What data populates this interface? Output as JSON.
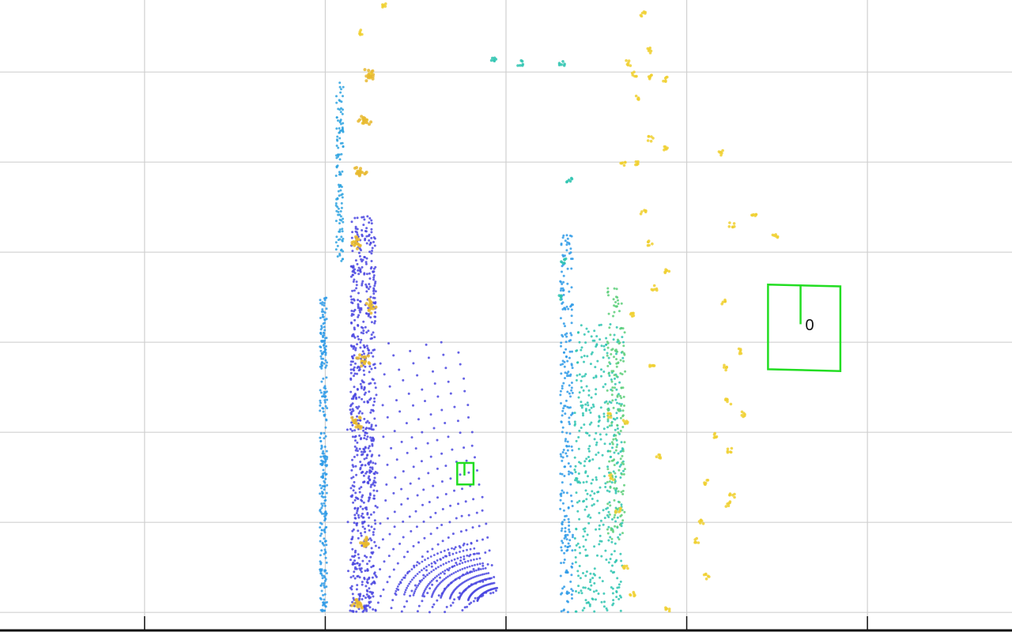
{
  "chart_data": {
    "type": "scatter",
    "title": "",
    "xlabel": "",
    "ylabel": "",
    "xlim": [
      -80,
      480
    ],
    "ylim": [
      -10,
      340
    ],
    "grid": true,
    "x_gridlines": [
      0,
      100,
      200,
      300,
      400
    ],
    "y_gridlines": [
      0,
      50,
      100,
      150,
      200,
      250,
      300
    ],
    "colors": {
      "grid": "#d0d0d0",
      "axis": "#111111",
      "box": "#22dd22",
      "low": "#4a47e0",
      "mid_blue": "#2f9be8",
      "teal": "#2ec4b0",
      "green_teal": "#5dcf7a",
      "yellow": "#f0d030",
      "orange_yellow": "#e8b830"
    },
    "series": [
      {
        "name": "left-wall-column",
        "color": "#2f9be8",
        "x_range": [
          97,
          101
        ],
        "y_range": [
          0,
          175
        ],
        "density": 1.6
      },
      {
        "name": "left-vertical-strip",
        "color": "#2fa3e0",
        "x_range": [
          106,
          110
        ],
        "y_range": [
          195,
          295
        ],
        "density": 1.2
      },
      {
        "name": "left-yellow-blobs",
        "color": "#f0d030",
        "points": [
          [
            118,
            5
          ],
          [
            122,
            38
          ],
          [
            117,
            105
          ],
          [
            121,
            140
          ],
          [
            125,
            170
          ],
          [
            117,
            205
          ],
          [
            119,
            245
          ],
          [
            122,
            273
          ],
          [
            124,
            298
          ],
          [
            119,
            322
          ],
          [
            132,
            337
          ]
        ]
      },
      {
        "name": "left-inner-dense-column",
        "color": "#4a47e0",
        "x_range": [
          114,
          128
        ],
        "y_range": [
          0,
          220
        ],
        "density": 3.0
      },
      {
        "name": "ground-rings",
        "color": "#4a47e0",
        "rings": true
      },
      {
        "name": "center-column",
        "color": "#2f9be8",
        "x_range": [
          230,
          237
        ],
        "y_range": [
          0,
          210
        ],
        "density": 1.2
      },
      {
        "name": "center-top-teal",
        "color": "#2ec4b0",
        "points": [
          [
            193,
            307
          ],
          [
            208,
            305
          ],
          [
            231,
            305
          ],
          [
            235,
            240
          ],
          [
            232,
            195
          ],
          [
            230,
            175
          ]
        ]
      },
      {
        "name": "right-dense-wall",
        "color": "#2ec4b0",
        "x_range": [
          238,
          265
        ],
        "y_range": [
          0,
          160
        ],
        "density": 2.6
      },
      {
        "name": "right-outer-column",
        "color": "#5dcf7a",
        "x_range": [
          256,
          266
        ],
        "y_range": [
          40,
          180
        ],
        "density": 1.2
      },
      {
        "name": "right-yellow-scatter",
        "color": "#f0d030",
        "points": [
          [
            276,
            332
          ],
          [
            279,
            312
          ],
          [
            268,
            305
          ],
          [
            271,
            299
          ],
          [
            280,
            297
          ],
          [
            288,
            296
          ],
          [
            273,
            286
          ],
          [
            280,
            263
          ],
          [
            288,
            258
          ],
          [
            272,
            249
          ],
          [
            265,
            249
          ],
          [
            276,
            222
          ],
          [
            280,
            205
          ],
          [
            289,
            190
          ],
          [
            282,
            180
          ],
          [
            270,
            165
          ],
          [
            281,
            138
          ],
          [
            257,
            109
          ],
          [
            266,
            106
          ],
          [
            284,
            87
          ],
          [
            258,
            75
          ],
          [
            262,
            57
          ],
          [
            266,
            25
          ],
          [
            270,
            10
          ],
          [
            289,
            2
          ],
          [
            325,
            215
          ],
          [
            319,
            255
          ],
          [
            330,
            145
          ],
          [
            322,
            136
          ],
          [
            323,
            117
          ],
          [
            316,
            98
          ],
          [
            324,
            90
          ],
          [
            311,
            72
          ],
          [
            332,
            110
          ],
          [
            325,
            65
          ],
          [
            306,
            40
          ],
          [
            311,
            20
          ],
          [
            308,
            50
          ],
          [
            323,
            60
          ]
        ]
      },
      {
        "name": "far-right-sparse",
        "color": "#f0d030",
        "points": [
          [
            337,
            221
          ],
          [
            349,
            209
          ],
          [
            321,
            172
          ]
        ]
      }
    ],
    "boxes": [
      {
        "name": "detected-object-large",
        "corners": [
          [
            345,
            182
          ],
          [
            385,
            181
          ],
          [
            385,
            134
          ],
          [
            345,
            135
          ]
        ],
        "heading_line": [
          [
            363,
            182
          ],
          [
            363,
            160
          ]
        ],
        "label": "0"
      },
      {
        "name": "detected-object-small",
        "corners": [
          [
            173,
            83
          ],
          [
            182,
            83
          ],
          [
            182,
            71
          ],
          [
            173,
            71
          ]
        ],
        "heading_line": [
          [
            177,
            83
          ],
          [
            177,
            76
          ]
        ],
        "label": ""
      }
    ]
  }
}
